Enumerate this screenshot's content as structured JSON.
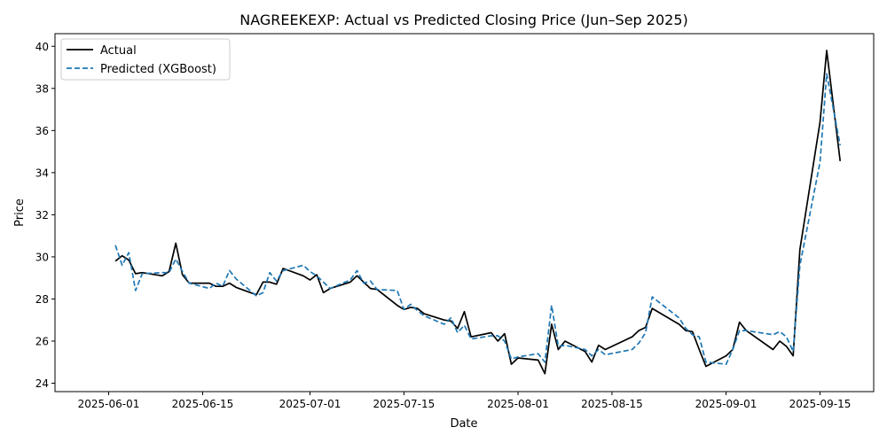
{
  "chart_data": {
    "type": "line",
    "title": "NAGREEKEXP: Actual vs Predicted Closing Price (Jun–Sep 2025)",
    "xlabel": "Date",
    "ylabel": "Price",
    "xlim": [
      "2025-05-24",
      "2025-09-23"
    ],
    "ylim": [
      23.6,
      40.6
    ],
    "x_ticks": [
      "2025-06-01",
      "2025-06-15",
      "2025-07-01",
      "2025-07-15",
      "2025-08-01",
      "2025-08-15",
      "2025-09-01",
      "2025-09-15"
    ],
    "y_ticks": [
      24,
      26,
      28,
      30,
      32,
      34,
      36,
      38,
      40
    ],
    "grid": false,
    "legend_placement": "top-left",
    "series": [
      {
        "name": "Actual",
        "color": "#000000",
        "style": "solid",
        "points": [
          [
            "2025-06-02",
            29.8
          ],
          [
            "2025-06-03",
            30.05
          ],
          [
            "2025-06-04",
            29.85
          ],
          [
            "2025-06-05",
            29.2
          ],
          [
            "2025-06-06",
            29.25
          ],
          [
            "2025-06-09",
            29.1
          ],
          [
            "2025-06-10",
            29.3
          ],
          [
            "2025-06-11",
            30.65
          ],
          [
            "2025-06-12",
            29.15
          ],
          [
            "2025-06-13",
            28.75
          ],
          [
            "2025-06-16",
            28.75
          ],
          [
            "2025-06-17",
            28.6
          ],
          [
            "2025-06-18",
            28.6
          ],
          [
            "2025-06-19",
            28.75
          ],
          [
            "2025-06-20",
            28.55
          ],
          [
            "2025-06-23",
            28.2
          ],
          [
            "2025-06-24",
            28.8
          ],
          [
            "2025-06-25",
            28.8
          ],
          [
            "2025-06-26",
            28.7
          ],
          [
            "2025-06-27",
            29.45
          ],
          [
            "2025-06-30",
            29.1
          ],
          [
            "2025-07-01",
            28.9
          ],
          [
            "2025-07-02",
            29.15
          ],
          [
            "2025-07-03",
            28.3
          ],
          [
            "2025-07-04",
            28.5
          ],
          [
            "2025-07-07",
            28.8
          ],
          [
            "2025-07-08",
            29.1
          ],
          [
            "2025-07-09",
            28.8
          ],
          [
            "2025-07-10",
            28.5
          ],
          [
            "2025-07-11",
            28.45
          ],
          [
            "2025-07-14",
            27.7
          ],
          [
            "2025-07-15",
            27.5
          ],
          [
            "2025-07-16",
            27.6
          ],
          [
            "2025-07-17",
            27.55
          ],
          [
            "2025-07-18",
            27.3
          ],
          [
            "2025-07-21",
            27.0
          ],
          [
            "2025-07-22",
            26.95
          ],
          [
            "2025-07-23",
            26.6
          ],
          [
            "2025-07-24",
            27.4
          ],
          [
            "2025-07-25",
            26.2
          ],
          [
            "2025-07-28",
            26.4
          ],
          [
            "2025-07-29",
            26.0
          ],
          [
            "2025-07-30",
            26.35
          ],
          [
            "2025-07-31",
            24.9
          ],
          [
            "2025-08-01",
            25.2
          ],
          [
            "2025-08-04",
            25.1
          ],
          [
            "2025-08-05",
            24.45
          ],
          [
            "2025-08-06",
            26.8
          ],
          [
            "2025-08-07",
            25.6
          ],
          [
            "2025-08-08",
            26.0
          ],
          [
            "2025-08-11",
            25.5
          ],
          [
            "2025-08-12",
            25.0
          ],
          [
            "2025-08-13",
            25.8
          ],
          [
            "2025-08-14",
            25.6
          ],
          [
            "2025-08-18",
            26.2
          ],
          [
            "2025-08-19",
            26.5
          ],
          [
            "2025-08-20",
            26.65
          ],
          [
            "2025-08-21",
            27.55
          ],
          [
            "2025-08-25",
            26.8
          ],
          [
            "2025-08-26",
            26.5
          ],
          [
            "2025-08-27",
            26.45
          ],
          [
            "2025-08-28",
            25.6
          ],
          [
            "2025-08-29",
            24.8
          ],
          [
            "2025-09-01",
            25.3
          ],
          [
            "2025-09-02",
            25.6
          ],
          [
            "2025-09-03",
            26.9
          ],
          [
            "2025-09-04",
            26.5
          ],
          [
            "2025-09-08",
            25.6
          ],
          [
            "2025-09-09",
            26.0
          ],
          [
            "2025-09-10",
            25.75
          ],
          [
            "2025-09-11",
            25.3
          ],
          [
            "2025-09-12",
            30.35
          ],
          [
            "2025-09-15",
            36.4
          ],
          [
            "2025-09-16",
            39.8
          ],
          [
            "2025-09-18",
            34.55
          ]
        ]
      },
      {
        "name": "Predicted (XGBoost)",
        "color": "#1f77b4",
        "style": "dashed",
        "points": [
          [
            "2025-06-02",
            30.55
          ],
          [
            "2025-06-03",
            29.6
          ],
          [
            "2025-06-04",
            30.2
          ],
          [
            "2025-06-05",
            28.4
          ],
          [
            "2025-06-06",
            29.2
          ],
          [
            "2025-06-09",
            29.25
          ],
          [
            "2025-06-10",
            29.25
          ],
          [
            "2025-06-11",
            29.9
          ],
          [
            "2025-06-12",
            29.3
          ],
          [
            "2025-06-13",
            28.75
          ],
          [
            "2025-06-16",
            28.5
          ],
          [
            "2025-06-17",
            28.75
          ],
          [
            "2025-06-18",
            28.6
          ],
          [
            "2025-06-19",
            29.35
          ],
          [
            "2025-06-20",
            28.95
          ],
          [
            "2025-06-23",
            28.15
          ],
          [
            "2025-06-24",
            28.3
          ],
          [
            "2025-06-25",
            29.25
          ],
          [
            "2025-06-26",
            28.85
          ],
          [
            "2025-06-27",
            29.35
          ],
          [
            "2025-06-30",
            29.6
          ],
          [
            "2025-07-01",
            29.3
          ],
          [
            "2025-07-02",
            29.1
          ],
          [
            "2025-07-03",
            28.8
          ],
          [
            "2025-07-04",
            28.5
          ],
          [
            "2025-07-07",
            28.9
          ],
          [
            "2025-07-08",
            29.35
          ],
          [
            "2025-07-09",
            28.75
          ],
          [
            "2025-07-10",
            28.85
          ],
          [
            "2025-07-11",
            28.45
          ],
          [
            "2025-07-14",
            28.4
          ],
          [
            "2025-07-15",
            27.5
          ],
          [
            "2025-07-16",
            27.75
          ],
          [
            "2025-07-17",
            27.45
          ],
          [
            "2025-07-18",
            27.2
          ],
          [
            "2025-07-21",
            26.8
          ],
          [
            "2025-07-22",
            27.1
          ],
          [
            "2025-07-23",
            26.4
          ],
          [
            "2025-07-24",
            26.75
          ],
          [
            "2025-07-25",
            26.1
          ],
          [
            "2025-07-28",
            26.25
          ],
          [
            "2025-07-29",
            26.25
          ],
          [
            "2025-07-30",
            26.0
          ],
          [
            "2025-07-31",
            25.15
          ],
          [
            "2025-08-01",
            25.25
          ],
          [
            "2025-08-04",
            25.4
          ],
          [
            "2025-08-05",
            25.0
          ],
          [
            "2025-08-06",
            27.7
          ],
          [
            "2025-08-07",
            25.75
          ],
          [
            "2025-08-08",
            25.8
          ],
          [
            "2025-08-11",
            25.6
          ],
          [
            "2025-08-12",
            25.3
          ],
          [
            "2025-08-13",
            25.6
          ],
          [
            "2025-08-14",
            25.35
          ],
          [
            "2025-08-18",
            25.6
          ],
          [
            "2025-08-19",
            25.9
          ],
          [
            "2025-08-20",
            26.4
          ],
          [
            "2025-08-21",
            28.1
          ],
          [
            "2025-08-25",
            27.1
          ],
          [
            "2025-08-26",
            26.6
          ],
          [
            "2025-08-27",
            26.3
          ],
          [
            "2025-08-28",
            26.2
          ],
          [
            "2025-08-29",
            25.0
          ],
          [
            "2025-09-01",
            24.9
          ],
          [
            "2025-09-02",
            25.6
          ],
          [
            "2025-09-03",
            26.5
          ],
          [
            "2025-09-04",
            26.5
          ],
          [
            "2025-09-08",
            26.3
          ],
          [
            "2025-09-09",
            26.45
          ],
          [
            "2025-09-10",
            26.2
          ],
          [
            "2025-09-11",
            25.5
          ],
          [
            "2025-09-12",
            29.6
          ],
          [
            "2025-09-15",
            34.5
          ],
          [
            "2025-09-16",
            38.7
          ],
          [
            "2025-09-18",
            35.3
          ]
        ]
      }
    ]
  }
}
